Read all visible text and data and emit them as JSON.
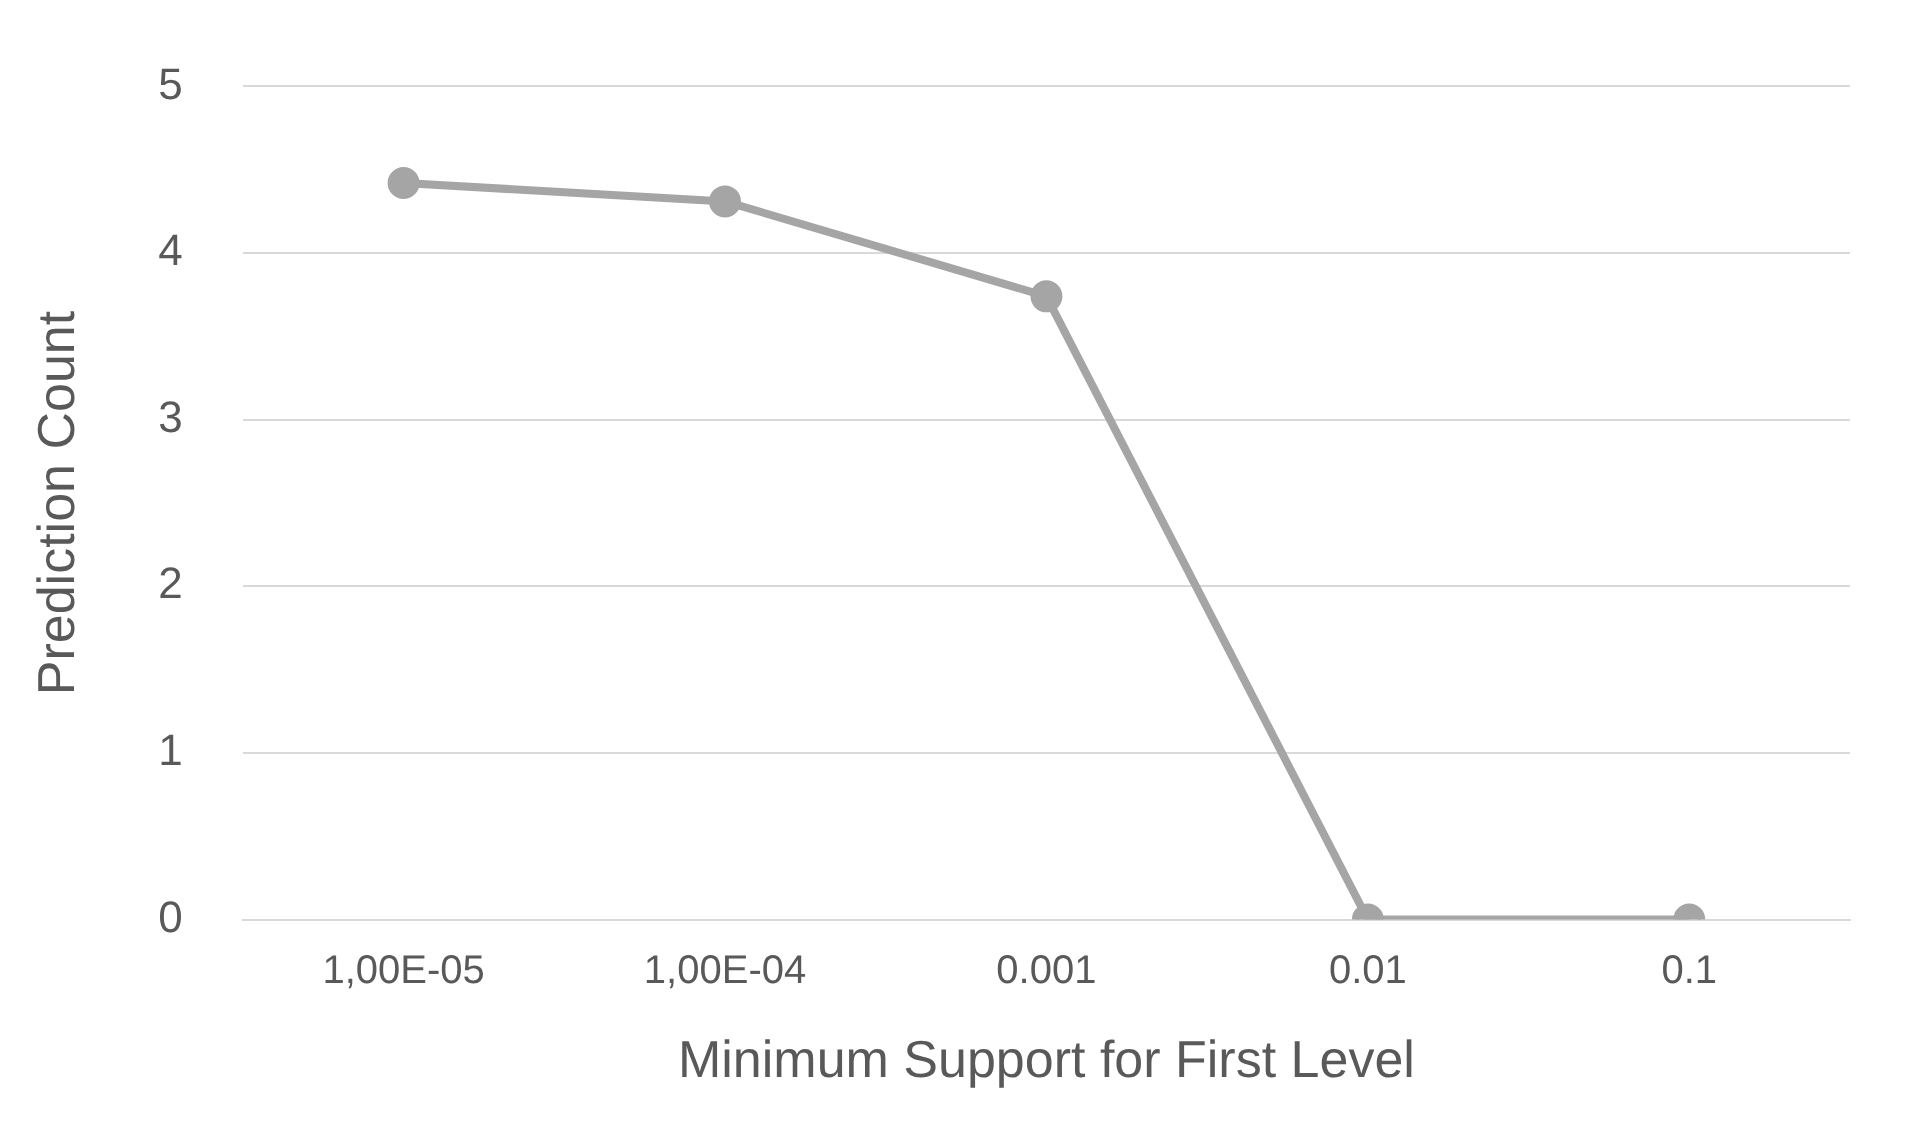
{
  "chart_data": {
    "type": "line",
    "xlabel": "Minimum Support for First Level",
    "ylabel": "Prediction Count",
    "categories": [
      "1,00E-05",
      "1,00E-04",
      "0.001",
      "0.01",
      "0.1"
    ],
    "series": [
      {
        "color": "#a5a5a5",
        "values": [
          4.42,
          4.31,
          3.74,
          0,
          0
        ]
      }
    ],
    "ylim": [
      0,
      5
    ],
    "yticks": [
      0,
      1,
      2,
      3,
      4,
      5
    ],
    "grid": "y",
    "legend": false,
    "marker": "circle",
    "line_style": "solid"
  }
}
